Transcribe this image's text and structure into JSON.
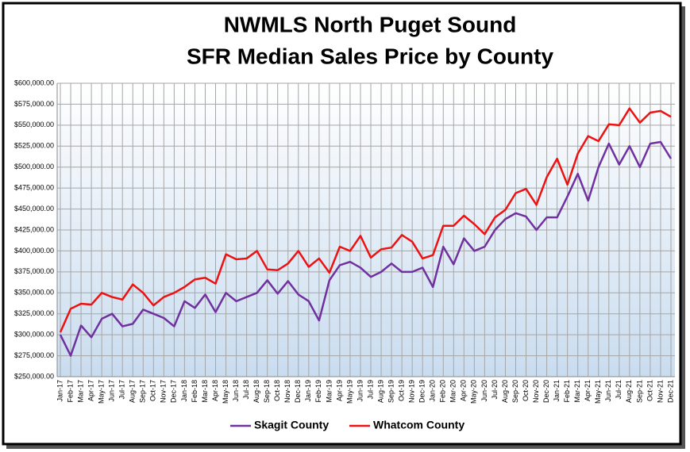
{
  "chart_data": {
    "type": "line",
    "title": "NWMLS North Puget Sound",
    "subtitle": "SFR Median Sales Price by County",
    "categories": [
      "Jan-17",
      "Feb-17",
      "Mar-17",
      "Apr-17",
      "May-17",
      "Jun-17",
      "Jul-17",
      "Aug-17",
      "Sep-17",
      "Oct-17",
      "Nov-17",
      "Dec-17",
      "Jan-18",
      "Feb-18",
      "Mar-18",
      "Apr-18",
      "May-18",
      "Jun-18",
      "Jul-18",
      "Aug-18",
      "Sep-18",
      "Oct-18",
      "Nov-18",
      "Dec-18",
      "Jan-19",
      "Feb-19",
      "Mar-19",
      "Apr-19",
      "May-19",
      "Jun-19",
      "Jul-19",
      "Aug-19",
      "Sep-19",
      "Oct-19",
      "Nov-19",
      "Dec-19",
      "Jan-20",
      "Feb-20",
      "Mar-20",
      "Apr-20",
      "May-20",
      "Jun-20",
      "Jul-20",
      "Aug-20",
      "Sep-20",
      "Oct-20",
      "Nov-20",
      "Dec-20",
      "Jan-21",
      "Feb-21",
      "Mar-21",
      "Apr-21",
      "May-21",
      "Jun-21",
      "Jul-21",
      "Aug-21",
      "Sep-21",
      "Oct-21",
      "Nov-21",
      "Dec-21"
    ],
    "series": [
      {
        "name": "Skagit County",
        "color": "#7030a0",
        "values": [
          300000,
          275000,
          311000,
          297000,
          319000,
          325000,
          310000,
          313000,
          330000,
          325000,
          320000,
          310000,
          340000,
          332000,
          348000,
          327000,
          350000,
          340000,
          345000,
          350000,
          365000,
          349000,
          364000,
          348000,
          340000,
          317000,
          365000,
          383000,
          387000,
          380000,
          369000,
          375000,
          385000,
          375000,
          375000,
          380000,
          357000,
          405000,
          384000,
          415000,
          400000,
          405000,
          425000,
          438000,
          445000,
          441000,
          425000,
          440000,
          440000,
          465000,
          492000,
          460000,
          500000,
          528000,
          503000,
          525000,
          500000,
          528000,
          530000,
          510000
        ]
      },
      {
        "name": "Whatcom County",
        "color": "#ee1111",
        "values": [
          303000,
          331000,
          337000,
          336000,
          350000,
          345000,
          342000,
          360000,
          350000,
          335000,
          345000,
          350000,
          357000,
          366000,
          368000,
          361000,
          396000,
          390000,
          391000,
          400000,
          378000,
          377000,
          385000,
          400000,
          381000,
          391000,
          374000,
          405000,
          400000,
          418000,
          392000,
          402000,
          404000,
          419000,
          411000,
          391000,
          395000,
          430000,
          430000,
          442000,
          432000,
          420000,
          440000,
          449000,
          469000,
          474000,
          455000,
          488000,
          510000,
          479000,
          516000,
          537000,
          531000,
          551000,
          550000,
          570000,
          553000,
          565000,
          567000,
          560000
        ]
      }
    ],
    "ylim": [
      250000,
      600000
    ],
    "yticks": [
      {
        "value": 250000,
        "label": "$250,000.00"
      },
      {
        "value": 275000,
        "label": "$275,000.00"
      },
      {
        "value": 300000,
        "label": "$300,000.00"
      },
      {
        "value": 325000,
        "label": "$325,000.00"
      },
      {
        "value": 350000,
        "label": "$350,000.00"
      },
      {
        "value": 375000,
        "label": "$375,000.00"
      },
      {
        "value": 400000,
        "label": "$400,000.00"
      },
      {
        "value": 425000,
        "label": "$425,000.00"
      },
      {
        "value": 450000,
        "label": "$450,000.00"
      },
      {
        "value": 475000,
        "label": "$475,000.00"
      },
      {
        "value": 500000,
        "label": "$500,000.00"
      },
      {
        "value": 525000,
        "label": "$525,000.00"
      },
      {
        "value": 550000,
        "label": "$550,000.00"
      },
      {
        "value": 575000,
        "label": "$575,000.00"
      },
      {
        "value": 600000,
        "label": "$600,000.00"
      }
    ],
    "grid": true,
    "legend": "bottom"
  }
}
